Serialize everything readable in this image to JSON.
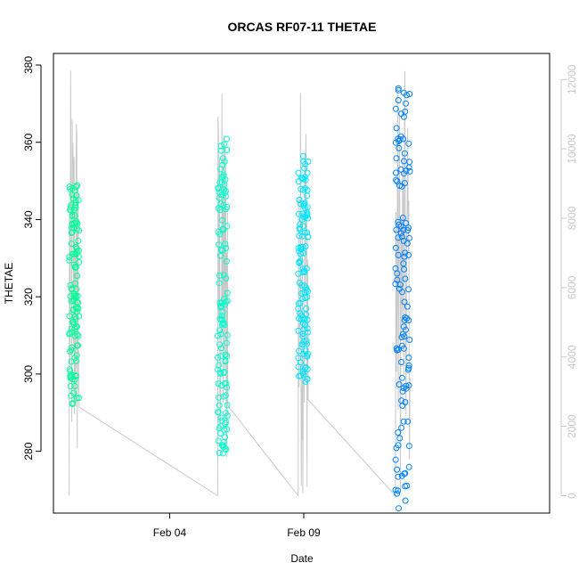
{
  "chart_data": {
    "type": "scatter",
    "title": "ORCAS RF07-11 THETAE",
    "xlabel": "Date",
    "ylabel": "THETAE",
    "x_ticks": [
      "Feb 04",
      "Feb 09"
    ],
    "y_ticks": [
      280,
      300,
      320,
      340,
      360,
      380
    ],
    "y_right_ticks": [
      0,
      2000,
      4000,
      6000,
      8000,
      10000,
      12000
    ],
    "ylim": [
      264,
      383
    ],
    "y_right_lim": [
      -500,
      12750
    ],
    "xlim": [
      "2016-01-30T16:00",
      "2016-02-18T04:00"
    ],
    "colors": {
      "flight1": "#00ff99",
      "flight2": "#00ffcc",
      "flight3": "#00e5ff",
      "flight4": "#0080ff",
      "altitude_line": "#c8c8c8"
    },
    "series": [
      {
        "time_range": [
          "2016-01-31T06:00",
          "2016-01-31T15:00"
        ],
        "thetae_range": [
          292,
          349
        ],
        "altitude_range": [
          0,
          12300
        ]
      },
      {
        "time_range": [
          "2016-02-05T19:00",
          "2016-02-06T04:00"
        ],
        "thetae_range": [
          279,
          361
        ],
        "altitude_range": [
          0,
          11900
        ]
      },
      {
        "time_range": [
          "2016-02-08T19:00",
          "2016-02-09T04:00"
        ],
        "thetae_range": [
          298,
          357
        ],
        "altitude_range": [
          0,
          12300
        ]
      },
      {
        "time_range": [
          "2016-02-12T10:00",
          "2016-02-12T23:00"
        ],
        "thetae_range": [
          265,
          377
        ],
        "altitude_range": [
          0,
          12300
        ]
      }
    ]
  }
}
